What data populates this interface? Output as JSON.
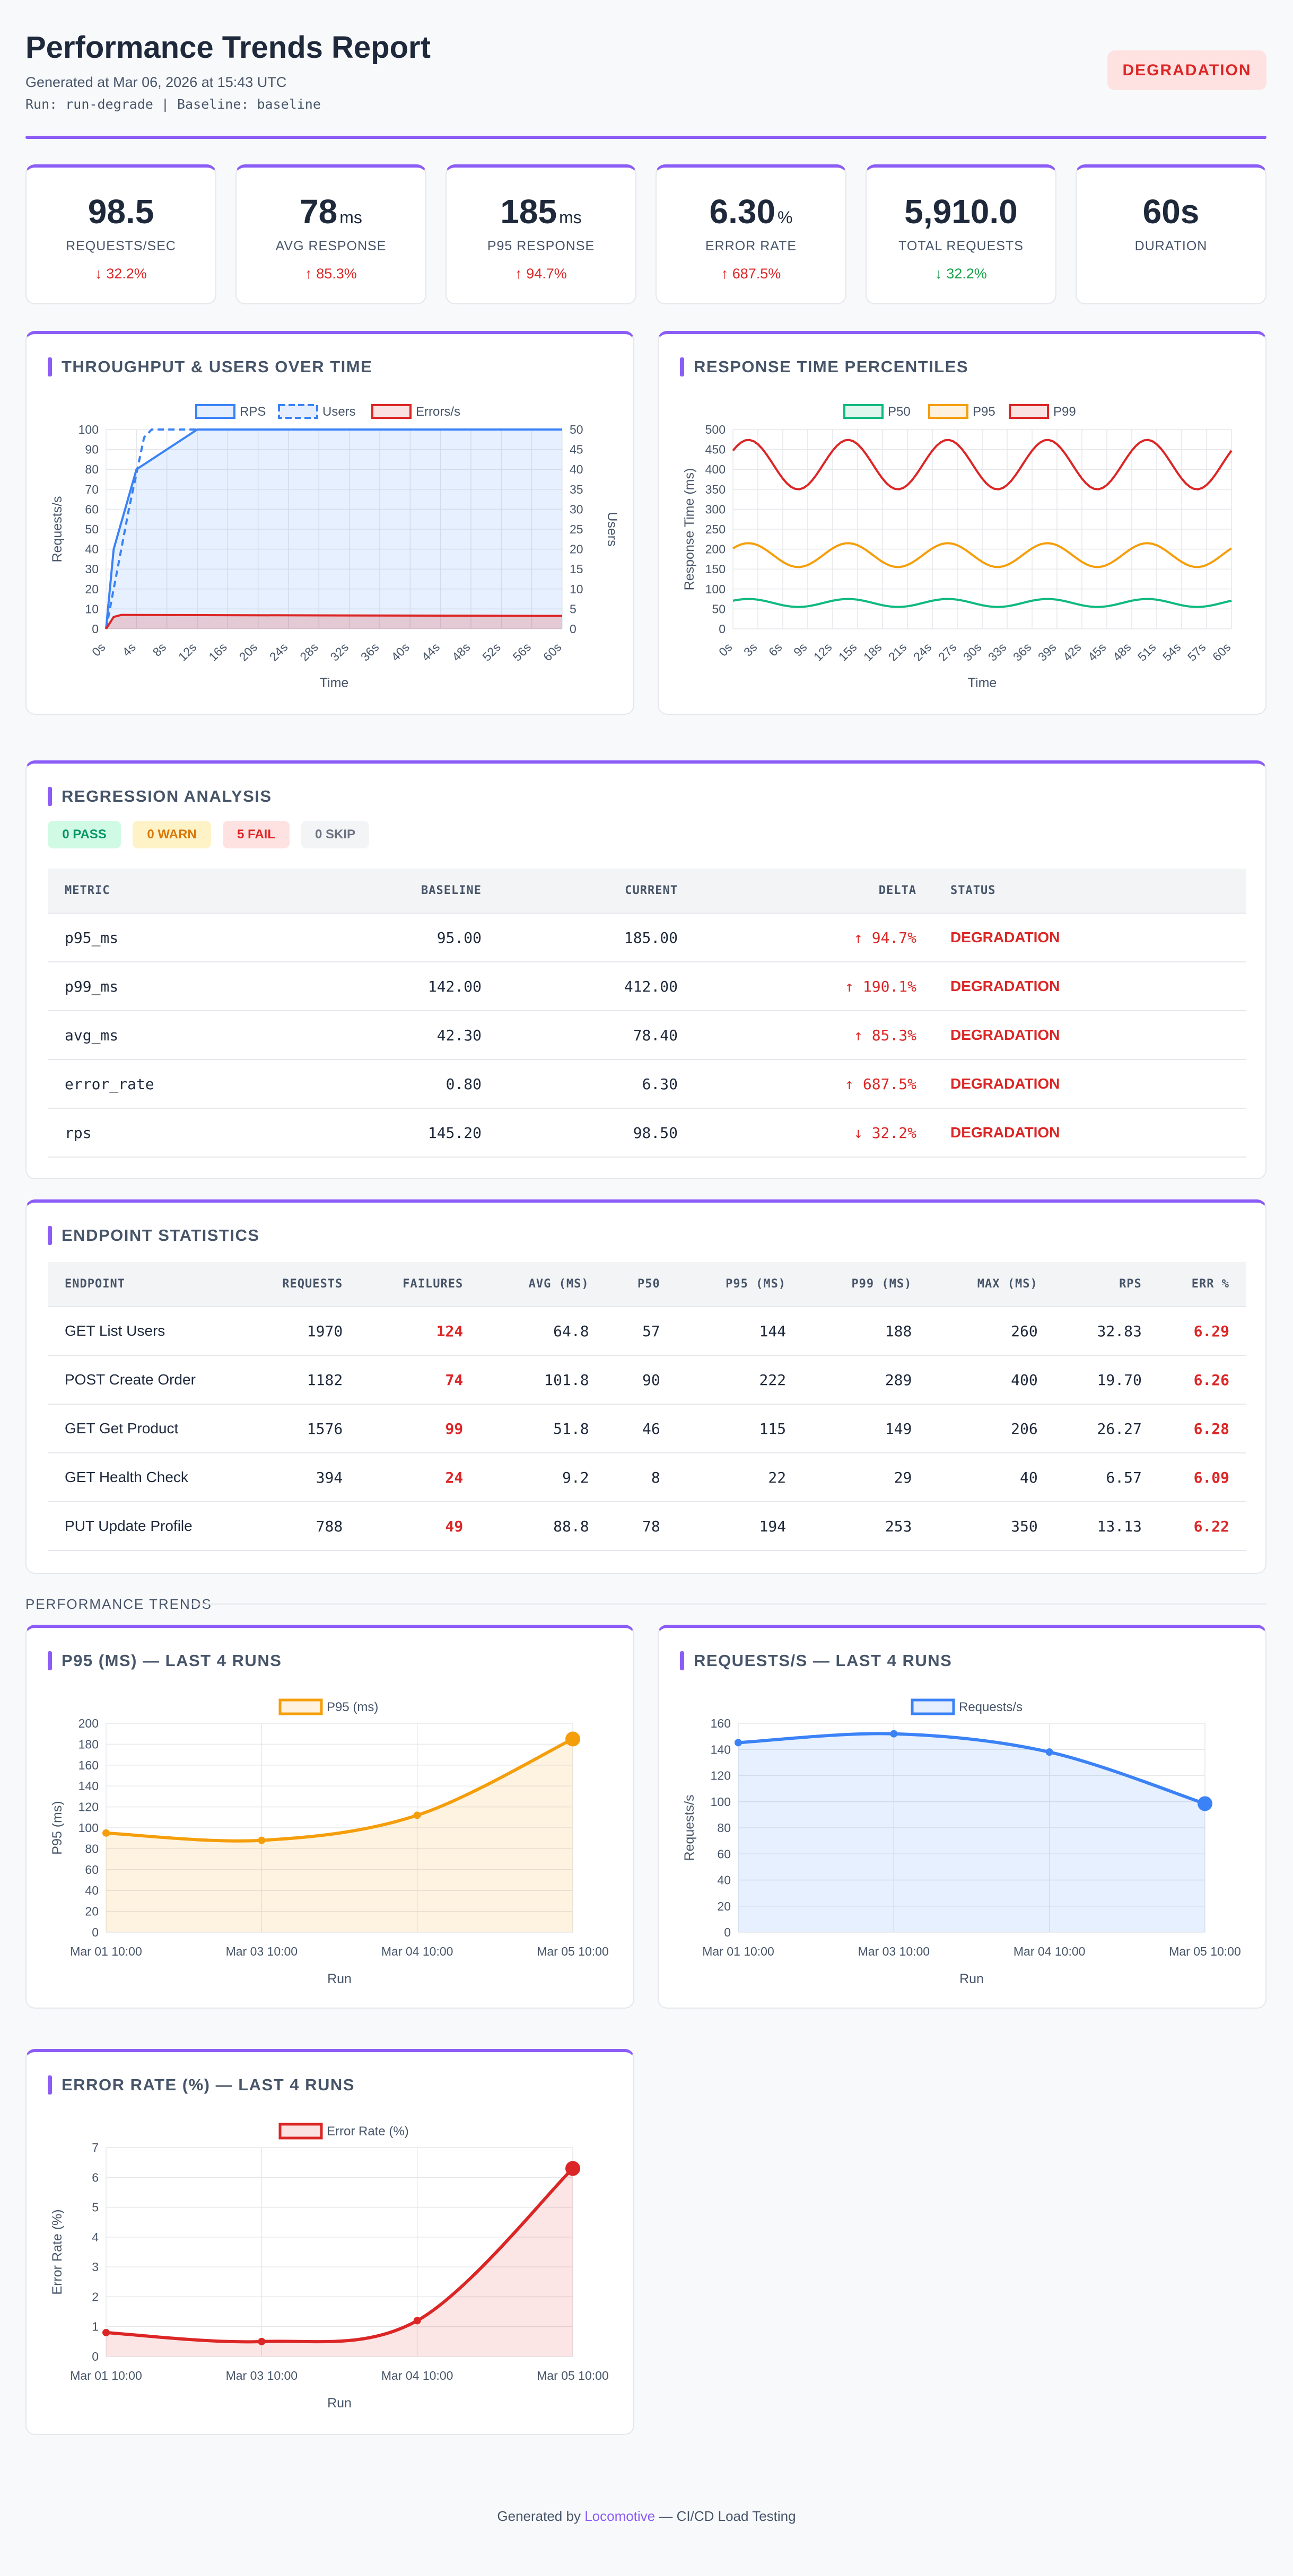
{
  "header": {
    "title": "Performance Trends Report",
    "generated": "Generated at Mar 06, 2026 at 15:43 UTC",
    "run_info": "Run: run-degrade | Baseline: baseline",
    "badge": "DEGRADATION"
  },
  "stats": [
    {
      "value": "98.5",
      "unit": "",
      "label": "REQUESTS/SEC",
      "delta": "↓ 32.2%",
      "tone": "bad"
    },
    {
      "value": "78",
      "unit": "ms",
      "label": "AVG RESPONSE",
      "delta": "↑ 85.3%",
      "tone": "bad"
    },
    {
      "value": "185",
      "unit": "ms",
      "label": "P95 RESPONSE",
      "delta": "↑ 94.7%",
      "tone": "bad"
    },
    {
      "value": "6.30",
      "unit": "%",
      "label": "ERROR RATE",
      "delta": "↑ 687.5%",
      "tone": "bad"
    },
    {
      "value": "5,910.0",
      "unit": "",
      "label": "TOTAL REQUESTS",
      "delta": "↓ 32.2%",
      "tone": "good"
    },
    {
      "value": "60s",
      "unit": "",
      "label": "DURATION",
      "delta": "",
      "tone": ""
    }
  ],
  "colors": {
    "accent": "#8b5cf6",
    "red": "#dc2626",
    "green": "#16a34a",
    "blue": "#3b82f6",
    "orange": "#f59e0b",
    "teal": "#10b981"
  },
  "sections": {
    "throughput": "THROUGHPUT & USERS OVER TIME",
    "percentiles": "RESPONSE TIME PERCENTILES",
    "regression": "REGRESSION ANALYSIS",
    "endpoints": "ENDPOINT STATISTICS",
    "trends": "PERFORMANCE TRENDS",
    "p95_trend": "P95 (MS) — LAST 4 RUNS",
    "rps_trend": "REQUESTS/S — LAST 4 RUNS",
    "err_trend": "ERROR RATE (%) — LAST 4 RUNS"
  },
  "regression": {
    "pills": {
      "pass": "0 PASS",
      "warn": "0 WARN",
      "fail": "5 FAIL",
      "skip": "0 SKIP"
    },
    "columns": [
      "METRIC",
      "BASELINE",
      "CURRENT",
      "DELTA",
      "STATUS"
    ],
    "rows": [
      {
        "metric": "p95_ms",
        "baseline": "95.00",
        "current": "185.00",
        "delta": "↑ 94.7%",
        "status": "DEGRADATION"
      },
      {
        "metric": "p99_ms",
        "baseline": "142.00",
        "current": "412.00",
        "delta": "↑ 190.1%",
        "status": "DEGRADATION"
      },
      {
        "metric": "avg_ms",
        "baseline": "42.30",
        "current": "78.40",
        "delta": "↑ 85.3%",
        "status": "DEGRADATION"
      },
      {
        "metric": "error_rate",
        "baseline": "0.80",
        "current": "6.30",
        "delta": "↑ 687.5%",
        "status": "DEGRADATION"
      },
      {
        "metric": "rps",
        "baseline": "145.20",
        "current": "98.50",
        "delta": "↓ 32.2%",
        "status": "DEGRADATION"
      }
    ]
  },
  "endpoints": {
    "columns": [
      "ENDPOINT",
      "REQUESTS",
      "FAILURES",
      "AVG (MS)",
      "P50",
      "P95 (MS)",
      "P99 (MS)",
      "MAX (MS)",
      "RPS",
      "ERR %"
    ],
    "rows": [
      [
        "GET List Users",
        "1970",
        "124",
        "64.8",
        "57",
        "144",
        "188",
        "260",
        "32.83",
        "6.29"
      ],
      [
        "POST Create Order",
        "1182",
        "74",
        "101.8",
        "90",
        "222",
        "289",
        "400",
        "19.70",
        "6.26"
      ],
      [
        "GET Get Product",
        "1576",
        "99",
        "51.8",
        "46",
        "115",
        "149",
        "206",
        "26.27",
        "6.28"
      ],
      [
        "GET Health Check",
        "394",
        "24",
        "9.2",
        "8",
        "22",
        "29",
        "40",
        "6.57",
        "6.09"
      ],
      [
        "PUT Update Profile",
        "788",
        "49",
        "88.8",
        "78",
        "194",
        "253",
        "350",
        "13.13",
        "6.22"
      ]
    ]
  },
  "chart_data": [
    {
      "type": "line",
      "title": "THROUGHPUT & USERS OVER TIME",
      "xlabel": "Time",
      "ylabel": "Requests/s",
      "y2label": "Users",
      "x": [
        "0s",
        "4s",
        "8s",
        "12s",
        "16s",
        "20s",
        "24s",
        "28s",
        "32s",
        "36s",
        "40s",
        "44s",
        "48s",
        "52s",
        "56s",
        "60s"
      ],
      "ylim": [
        0,
        100
      ],
      "y2lim": [
        0,
        50
      ],
      "series": [
        {
          "name": "RPS",
          "axis": "y",
          "points": [
            [
              0,
              0
            ],
            [
              1,
              40
            ],
            [
              4,
              80
            ],
            [
              12,
              100
            ],
            [
              60,
              100
            ]
          ],
          "color": "#3b82f6",
          "fill": true
        },
        {
          "name": "Users",
          "axis": "y2",
          "points": [
            [
              0,
              0
            ],
            [
              3,
              30
            ],
            [
              5,
              48
            ],
            [
              6,
              50
            ],
            [
              60,
              50
            ]
          ],
          "color": "#3b82f6",
          "dashed": true
        },
        {
          "name": "Errors/s",
          "axis": "y",
          "points": [
            [
              0,
              0
            ],
            [
              1,
              6
            ],
            [
              2,
              7
            ],
            [
              60,
              6.5
            ]
          ],
          "color": "#dc2626",
          "fill": true
        }
      ],
      "legend": "top"
    },
    {
      "type": "line",
      "title": "RESPONSE TIME PERCENTILES",
      "xlabel": "Time",
      "ylabel": "Response Time (ms)",
      "x": [
        "0s",
        "3s",
        "6s",
        "9s",
        "12s",
        "15s",
        "18s",
        "21s",
        "24s",
        "27s",
        "30s",
        "33s",
        "36s",
        "39s",
        "42s",
        "45s",
        "48s",
        "51s",
        "54s",
        "57s",
        "60s"
      ],
      "ylim": [
        0,
        500
      ],
      "series": [
        {
          "name": "P50",
          "base": 65,
          "amplitude": 10,
          "color": "#10b981"
        },
        {
          "name": "P95",
          "base": 185,
          "amplitude": 30,
          "color": "#f59e0b"
        },
        {
          "name": "P99",
          "base": 412,
          "amplitude": 62,
          "color": "#dc2626"
        }
      ],
      "period_s": 12,
      "legend": "top"
    },
    {
      "type": "line",
      "title": "P95 (MS) — LAST 4 RUNS",
      "xlabel": "Run",
      "ylabel": "P95 (ms)",
      "categories": [
        "Mar 01 10:00",
        "Mar 03 10:00",
        "Mar 04 10:00",
        "Mar 05 10:00"
      ],
      "series": [
        {
          "name": "P95 (ms)",
          "values": [
            95,
            88,
            112,
            185
          ]
        }
      ],
      "ylim": [
        0,
        200
      ],
      "ystep": 20,
      "color": "#f59e0b"
    },
    {
      "type": "line",
      "title": "REQUESTS/S — LAST 4 RUNS",
      "xlabel": "Run",
      "ylabel": "Requests/s",
      "categories": [
        "Mar 01 10:00",
        "Mar 03 10:00",
        "Mar 04 10:00",
        "Mar 05 10:00"
      ],
      "series": [
        {
          "name": "Requests/s",
          "values": [
            145.2,
            152,
            138,
            98.5
          ]
        }
      ],
      "ylim": [
        0,
        160
      ],
      "ystep": 20,
      "color": "#3b82f6"
    },
    {
      "type": "line",
      "title": "ERROR RATE (%) — LAST 4 RUNS",
      "xlabel": "Run",
      "ylabel": "Error Rate (%)",
      "categories": [
        "Mar 01 10:00",
        "Mar 03 10:00",
        "Mar 04 10:00",
        "Mar 05 10:00"
      ],
      "series": [
        {
          "name": "Error Rate (%)",
          "values": [
            0.8,
            0.5,
            1.2,
            6.3
          ]
        }
      ],
      "ylim": [
        0,
        7
      ],
      "ystep": 1,
      "color": "#dc2626"
    }
  ],
  "footer": {
    "prefix": "Generated by",
    "brand": "Locomotive",
    "suffix": "— CI/CD Load Testing"
  }
}
